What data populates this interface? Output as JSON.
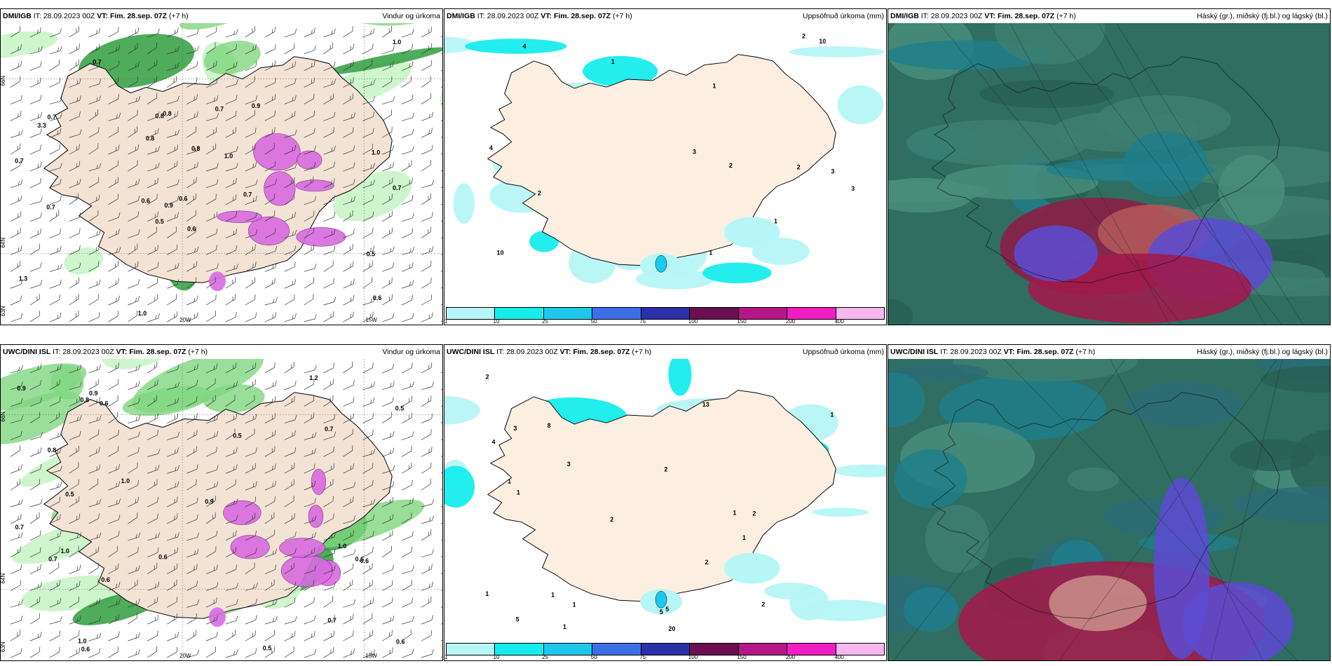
{
  "panels": [
    {
      "model": "DMI/IGB",
      "it": "28.09.2023 00Z",
      "vt": "Fim. 28.sep. 07Z",
      "lead": "(+7 h)",
      "title_right": "Vindur og úrkoma"
    },
    {
      "model": "DMI/IGB",
      "it": "28.09.2023 00Z",
      "vt": "Fim. 28.sep. 07Z",
      "lead": "(+7 h)",
      "title_right": "Uppsöfnuð úrkoma (mm)"
    },
    {
      "model": "DMI/IGB",
      "it": "28.09.2023 00Z",
      "vt": "Fim. 28.sep. 07Z",
      "lead": "(+7 h)",
      "title_right": "Háský (gr.), miðský (fj.bl.) og lágský (bl.)"
    },
    {
      "model": "UWC/DINI ISL",
      "it": "28.09.2023 00Z",
      "vt": "Fim. 28.sep. 07Z",
      "lead": "(+7 h)",
      "title_right": "Vindur og úrkoma"
    },
    {
      "model": "UWC/DINI ISL",
      "it": "28.09.2023 00Z",
      "vt": "Fim. 28.sep. 07Z",
      "lead": "(+7 h)",
      "title_right": "Uppsöfnuð úrkoma (mm)"
    },
    {
      "model": "UWC/DINI ISL",
      "it": "28.09.2023 00Z",
      "vt": "Fim. 28.sep. 07Z",
      "lead": "(+7 h)",
      "title_right": "Háský (gr.), miðský (fj.bl.) og lágský (bl.)"
    }
  ],
  "labels": {
    "it": "IT:",
    "vt": "VT:"
  },
  "axis_labels": {
    "lat66": "66N",
    "lat64": "64N",
    "lat63": "63N",
    "lon20": "20W",
    "lon15": "15W"
  },
  "colorbar": {
    "colors": [
      "#b7f6f6",
      "#17ecec",
      "#1ec8ec",
      "#3c6fe6",
      "#2b2fa8",
      "#6b0f4f",
      "#b5168a",
      "#f01cc4",
      "#f6b6ee"
    ],
    "ticks": [
      "1",
      "10",
      "25",
      "50",
      "75",
      "100",
      "150",
      "200",
      "400"
    ]
  },
  "wind_numbers_top": [
    "0.6",
    "0.8",
    "0.7",
    "1.0",
    "0.8",
    "1.0",
    "0.7",
    "0.5",
    "0.7",
    "0.6",
    "1.3",
    "0.7",
    "0.9",
    "0.8",
    "0.5",
    "0.9",
    "1.0",
    "0.6",
    "0.7",
    "0.6",
    "0.8",
    "0.7",
    "0.7",
    "3.3",
    "1.0"
  ],
  "wind_numbers_bottom": [
    "0.9",
    "0.6",
    "0.7",
    "0.9",
    "0.6",
    "0.7",
    "0.5",
    "1.0",
    "0.5",
    "0.9",
    "1.0",
    "0.6",
    "0.7",
    "0.6",
    "0.5",
    "0.6",
    "0.8",
    "1.0",
    "0.6",
    "0.5",
    "1.2",
    "0.6",
    "0.8",
    "0.7",
    "1.0"
  ],
  "precip_numbers_top": [
    "2",
    "3",
    "1",
    "10",
    "3",
    "1",
    "2",
    "1",
    "3",
    "4",
    "2",
    "10",
    "2",
    "4",
    "1"
  ],
  "precip_numbers_bottom": [
    "1",
    "2",
    "1",
    "2",
    "1",
    "1",
    "1",
    "2",
    "20",
    "13",
    "1",
    "1",
    "3",
    "4",
    "5",
    "1",
    "2",
    "3",
    "5",
    "2",
    "2",
    "5",
    "8",
    "1"
  ]
}
